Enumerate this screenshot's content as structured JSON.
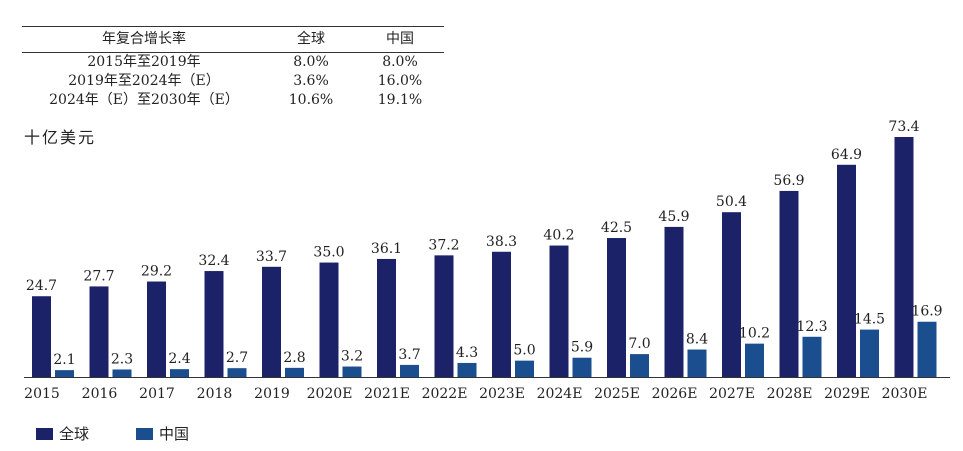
{
  "cagr_table": {
    "headers": [
      "年复合增长率",
      "全球",
      "中国"
    ],
    "rows": [
      [
        "2015年至2019年",
        "8.0%",
        "8.0%"
      ],
      [
        "2019年至2024年（E）",
        "3.6%",
        "16.0%"
      ],
      [
        "2024年（E）至2030年（E）",
        "10.6%",
        "19.1%"
      ]
    ]
  },
  "unit_label": "十亿美元",
  "colors": {
    "global": "#1c2268",
    "china": "#1a4e8e"
  },
  "chart_data": {
    "type": "bar",
    "title": "",
    "xlabel": "",
    "ylabel": "十亿美元",
    "categories": [
      "2015",
      "2016",
      "2017",
      "2018",
      "2019",
      "2020E",
      "2021E",
      "2022E",
      "2023E",
      "2024E",
      "2025E",
      "2026E",
      "2027E",
      "2028E",
      "2029E",
      "2030E"
    ],
    "series": [
      {
        "name": "全球",
        "values": [
          24.7,
          27.7,
          29.2,
          32.4,
          33.7,
          35.0,
          36.1,
          37.2,
          38.3,
          40.2,
          42.5,
          45.9,
          50.4,
          56.9,
          64.9,
          73.4
        ],
        "labels": [
          "24.7",
          "27.7",
          "29.2",
          "32.4",
          "33.7",
          "35.0",
          "36.1",
          "37.2",
          "38.3",
          "40.2",
          "42.5",
          "45.9",
          "50.4",
          "56.9",
          "64.9",
          "73.4"
        ]
      },
      {
        "name": "中国",
        "values": [
          2.1,
          2.3,
          2.4,
          2.7,
          2.8,
          3.2,
          3.7,
          4.3,
          5.0,
          5.9,
          7.0,
          8.4,
          10.2,
          12.3,
          14.5,
          16.9
        ],
        "labels": [
          "2.1",
          "2.3",
          "2.4",
          "2.7",
          "2.8",
          "3.2",
          "3.7",
          "4.3",
          "5.0",
          "5.9",
          "7.0",
          "8.4",
          "10.2",
          "12.3",
          "14.5",
          "16.9"
        ]
      }
    ],
    "ylim": [
      0,
      73.4
    ],
    "grid": false,
    "legend": "bottom-left"
  }
}
